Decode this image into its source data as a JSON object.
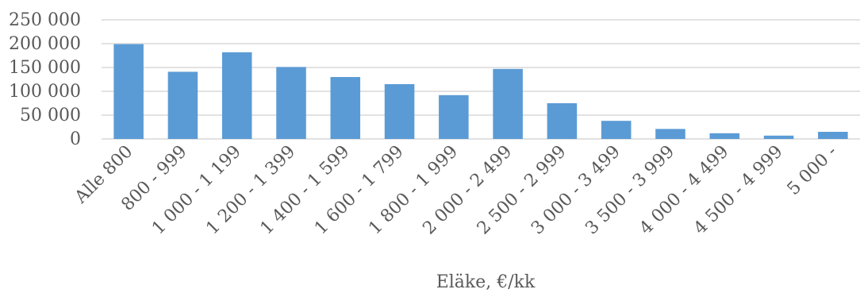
{
  "chart_data": {
    "type": "bar",
    "categories": [
      "Alle 800",
      "800 - 999",
      "1 000 - 1 199",
      "1 200 - 1 399",
      "1 400 - 1 599",
      "1 600 - 1 799",
      "1 800 - 1 999",
      "2 000 - 2 499",
      "2 500 - 2 999",
      "3 000 - 3 499",
      "3 500 - 3 999",
      "4 000 - 4 499",
      "4 500 - 4 999",
      "5 000 -"
    ],
    "values": [
      199000,
      141000,
      182000,
      151000,
      130000,
      115000,
      92000,
      147000,
      75000,
      38000,
      21000,
      12000,
      7000,
      15000
    ],
    "xlabel": "Eläke, €/kk",
    "ylabel": "",
    "ylim": [
      0,
      250000
    ],
    "yticks": [
      0,
      50000,
      100000,
      150000,
      200000,
      250000
    ],
    "ytick_labels": [
      "0",
      "50 000",
      "100 000",
      "150 000",
      "200 000",
      "250 000"
    ],
    "grid": true,
    "bar_color": "#5b9bd5",
    "grid_color": "#d9d9d9",
    "text_color": "#595959"
  }
}
